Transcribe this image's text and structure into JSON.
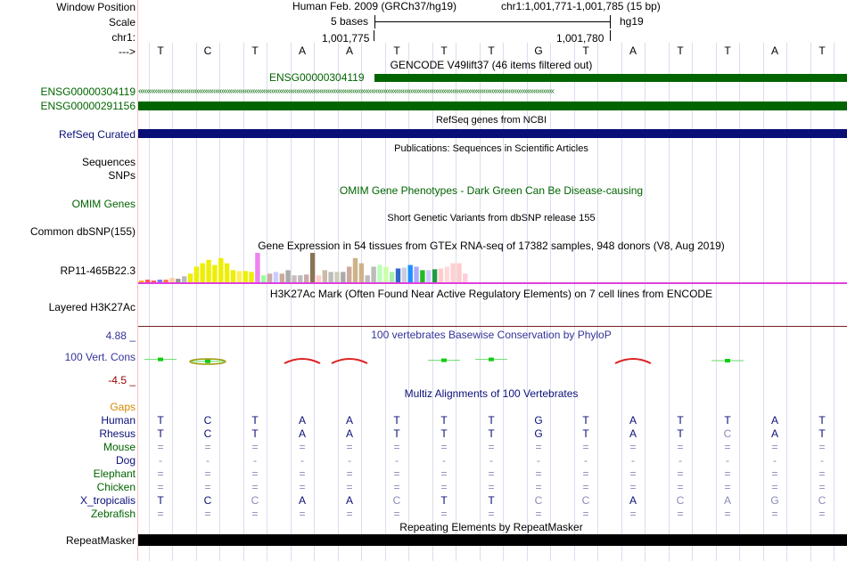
{
  "colors": {
    "gencode_green": "#006400",
    "refseq_navy": "#0a0f78",
    "conservation": "#333399",
    "multiz": "#0a0f78",
    "omim": "#006400"
  },
  "header": {
    "assembly": "Human Feb. 2009 (GRCh37/hg19)",
    "position": "chr1:1,001,771-1,001,785 (15 bp)",
    "scale_text": "5 bases",
    "db": "hg19",
    "coord_left": "1,001,775",
    "coord_right": "1,001,780"
  },
  "labels": {
    "window_position": "Window Position",
    "scale": "Scale",
    "chrom": "chr1:",
    "strand_arrow": "--->",
    "ensg_a": "ENSG00000304119",
    "ensg_b": "ENSG00000291156",
    "refseq": "RefSeq Curated",
    "sequences": "Sequences",
    "snps": "SNPs",
    "omim": "OMIM Genes",
    "dbsnp": "Common dbSNP(155)",
    "gtex_gene": "RP11-465B22.3",
    "h3k27ac": "Layered H3K27Ac",
    "cons_max": "4.88 _",
    "cons_label": "100 Vert. Cons",
    "cons_min": "-4.5 _",
    "gaps": "Gaps",
    "species": [
      "Human",
      "Rhesus",
      "Mouse",
      "Dog",
      "Elephant",
      "Chicken",
      "X_tropicalis",
      "Zebrafish"
    ],
    "repeatmasker": "RepeatMasker"
  },
  "tracks": {
    "gencode_title": "GENCODE V49lift37 (46 items filtered out)",
    "gencode_item": "ENSG00000304119",
    "refseq_title": "RefSeq genes from NCBI",
    "publications_title": "Publications: Sequences in Scientific Articles",
    "omim_title": "OMIM Gene Phenotypes - Dark Green Can Be Disease-causing",
    "dbsnp_title": "Short Genetic Variants from dbSNP release 155",
    "gtex_title": "Gene Expression in 54 tissues from GTEx RNA-seq of 17382 samples, 948 donors (V8, Aug 2019)",
    "h3k27ac_title": "H3K27Ac Mark (Often Found Near Active Regulatory Elements) on 7 cell lines from ENCODE",
    "phylop_title": "100 vertebrates Basewise Conservation by PhyloP",
    "multiz_title": "Multiz Alignments of 100 Vertebrates",
    "repeat_title": "Repeating Elements by RepeatMasker"
  },
  "sequence": [
    "T",
    "C",
    "T",
    "A",
    "A",
    "T",
    "T",
    "T",
    "G",
    "T",
    "A",
    "T",
    "T",
    "A",
    "T"
  ],
  "alignment": {
    "Human": [
      "T",
      "C",
      "T",
      "A",
      "A",
      "T",
      "T",
      "T",
      "G",
      "T",
      "A",
      "T",
      "T",
      "A",
      "T"
    ],
    "Rhesus": [
      "T",
      "C",
      "T",
      "A",
      "A",
      "T",
      "T",
      "T",
      "G",
      "T",
      "A",
      "T",
      "C",
      "A",
      "T"
    ],
    "Mouse": [
      "=",
      "=",
      "=",
      "=",
      "=",
      "=",
      "=",
      "=",
      "=",
      "=",
      "=",
      "=",
      "=",
      "=",
      "="
    ],
    "Dog": [
      "-",
      "-",
      "-",
      "-",
      "-",
      "-",
      "-",
      "-",
      "-",
      "-",
      "-",
      "-",
      "-",
      "-",
      "-"
    ],
    "Elephant": [
      "=",
      "=",
      "=",
      "=",
      "=",
      "=",
      "=",
      "=",
      "=",
      "=",
      "=",
      "=",
      "=",
      "=",
      "="
    ],
    "Chicken": [
      "=",
      "=",
      "=",
      "=",
      "=",
      "=",
      "=",
      "=",
      "=",
      "=",
      "=",
      "=",
      "=",
      "=",
      "="
    ],
    "X_tropicalis": [
      "T",
      "C",
      "C",
      "A",
      "A",
      "C",
      "T",
      "T",
      "C",
      "C",
      "A",
      "C",
      "A",
      "G",
      "C"
    ],
    "Zebrafish": [
      "=",
      "=",
      "=",
      "=",
      "=",
      "=",
      "=",
      "=",
      "=",
      "=",
      "=",
      "=",
      "=",
      "=",
      "="
    ]
  },
  "alignment_muted": {
    "Rhesus": [
      12
    ],
    "X_tropicalis": [
      2,
      5,
      8,
      9,
      11,
      12,
      13,
      14
    ]
  },
  "gtex_values": [
    2,
    3,
    2,
    3,
    3,
    5,
    4,
    7,
    10,
    18,
    22,
    26,
    20,
    28,
    22,
    14,
    13,
    13,
    12,
    34,
    8,
    10,
    12,
    10,
    14,
    8,
    8,
    9,
    34,
    8,
    14,
    12,
    12,
    12,
    18,
    28,
    22,
    8,
    18,
    20,
    18,
    12,
    16,
    17,
    20,
    18,
    14,
    14,
    15,
    16,
    18,
    22,
    22,
    10
  ],
  "gtex_colors": [
    "#ffaa00",
    "#ff5555",
    "#ff5555",
    "#7777ff",
    "#ff7744",
    "#ffcc99",
    "#999999",
    "#bbbbbb",
    "#eeee00",
    "#eeee00",
    "#eeee00",
    "#eeee00",
    "#eeee00",
    "#eeee00",
    "#eeee00",
    "#eeee00",
    "#ffee55",
    "#eeee00",
    "#eeee00",
    "#ee82ee",
    "#99ff99",
    "#ccaaaa",
    "#ccccff",
    "#ccaa99",
    "#aaaaaa",
    "#ccbbbb",
    "#bbbbbb",
    "#ccaaaa",
    "#8b7355",
    "#ffcccc",
    "#ccbbaa",
    "#bbbbbb",
    "#ccccbb",
    "#aaaaaa",
    "#ccaa99",
    "#cdb38b",
    "#cdb38b",
    "#bbbbbb",
    "#bbbbbb",
    "#bbffbb",
    "#ccffaa",
    "#aaeeaa",
    "#3366cc",
    "#ccccdd",
    "#1e90ff",
    "#aaaaff",
    "#22bb22",
    "#ccccff",
    "#229944",
    "#ffcccc",
    "#ffd9d9",
    "#ffd0d0",
    "#ffcccc",
    "#ffccdd"
  ],
  "phylop_values": [
    1.2,
    0.1,
    0,
    -1.5,
    -1.5,
    0,
    0.7,
    1.2,
    0,
    0,
    -1.5,
    0,
    0.5,
    0,
    0
  ]
}
